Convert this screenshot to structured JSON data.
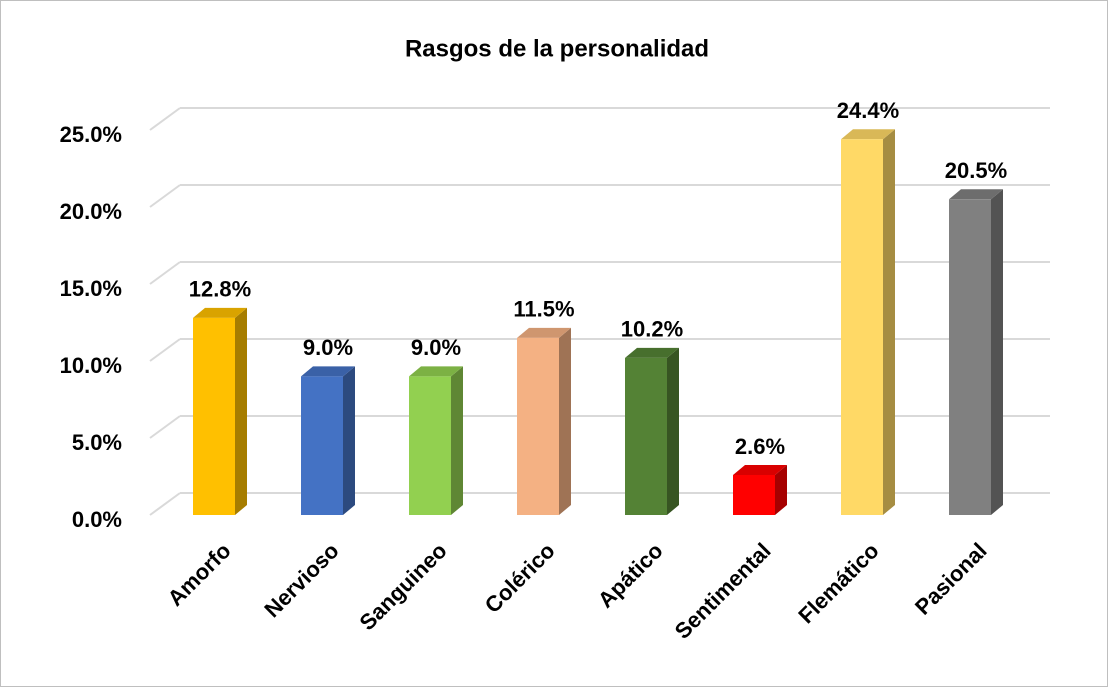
{
  "chart_data": {
    "type": "bar3d",
    "title": "Rasgos de la personalidad",
    "categories": [
      "Amorfo",
      "Nervioso",
      "Sanguineo",
      "Colérico",
      "Apático",
      "Sentimental",
      "Flemático",
      "Pasional"
    ],
    "values": [
      12.8,
      9.0,
      9.0,
      11.5,
      10.2,
      2.6,
      24.4,
      20.5
    ],
    "value_labels": [
      "12.8%",
      "9.0%",
      "9.0%",
      "11.5%",
      "10.2%",
      "2.6%",
      "24.4%",
      "20.5%"
    ],
    "colors": [
      "#FFC000",
      "#4472C4",
      "#92D050",
      "#F4B183",
      "#548235",
      "#FF0000",
      "#FFD966",
      "#808080"
    ],
    "ylim": [
      0,
      25
    ],
    "yticks": [
      {
        "value": 0,
        "label": "0.0%"
      },
      {
        "value": 5,
        "label": "5.0%"
      },
      {
        "value": 10,
        "label": "10.0%"
      },
      {
        "value": 15,
        "label": "15.0%"
      },
      {
        "value": 20,
        "label": "20.0%"
      },
      {
        "value": 25,
        "label": "25.0%"
      }
    ],
    "grid": true
  }
}
